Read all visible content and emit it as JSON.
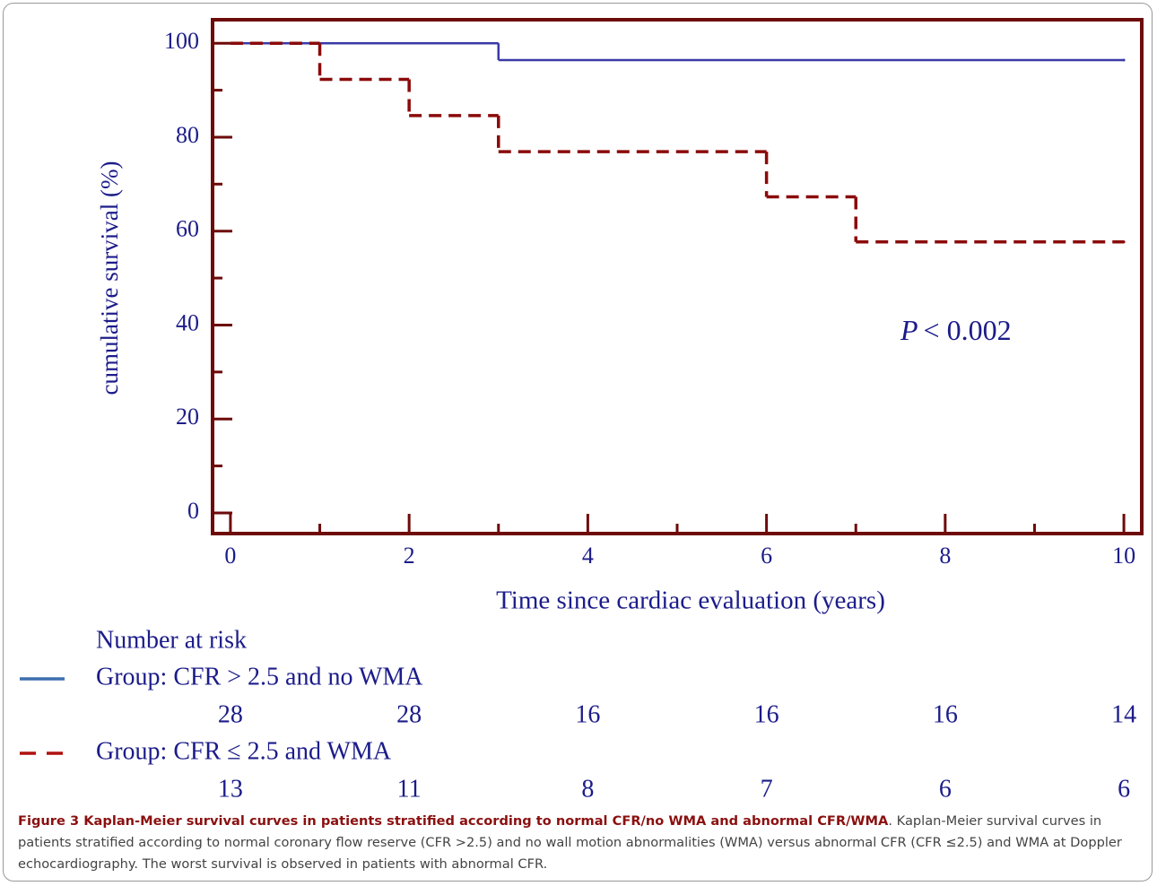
{
  "chart_data": {
    "type": "step",
    "ylabel": "cumulative survival (%)",
    "xlabel": "Time since cardiac evaluation (years)",
    "xlim": [
      -0.2,
      10.2
    ],
    "ylim": [
      -4.4,
      105
    ],
    "xticks": [
      0,
      2,
      4,
      6,
      8,
      10
    ],
    "xminorticks": [
      1,
      3,
      5,
      7,
      9
    ],
    "yticks": [
      0,
      20,
      40,
      60,
      80,
      100
    ],
    "yminorticks": [
      10,
      30,
      50,
      70,
      90
    ],
    "annotation": {
      "symbol": "P",
      "text": "< 0.002"
    },
    "series": [
      {
        "name": "Group: CFR > 2.5 and no WMA",
        "color": "#3a3aa8",
        "dashed": false,
        "x": [
          0,
          3,
          10
        ],
        "values": [
          100,
          96.4,
          96.4
        ]
      },
      {
        "name": "Group: CFR ≤ 2.5 and WMA",
        "color": "#8b0a0a",
        "dashed": true,
        "x": [
          0,
          1,
          2,
          3,
          6,
          7,
          10
        ],
        "values": [
          100,
          92.3,
          84.6,
          76.9,
          67.3,
          57.7,
          57.7
        ]
      }
    ],
    "risk_table": {
      "title": "Number at risk",
      "legend_colors": [
        "#3d6fae",
        "#b01010"
      ],
      "counts": [
        [
          28,
          28,
          16,
          16,
          16,
          14
        ],
        [
          13,
          11,
          8,
          7,
          6,
          6
        ]
      ]
    }
  },
  "caption": {
    "bold": "Figure 3 Kaplan-Meier survival curves in patients stratified according to normal CFR/no WMA and abnormal CFR/WMA",
    "text": ". Kaplan-Meier survival curves in patients stratified according to normal coronary flow reserve (CFR >2.5) and no wall motion abnormalities (WMA) versus abnormal CFR (CFR ≤2.5) and WMA at Doppler echocardiography. The worst survival is observed in patients with abnormal CFR."
  }
}
